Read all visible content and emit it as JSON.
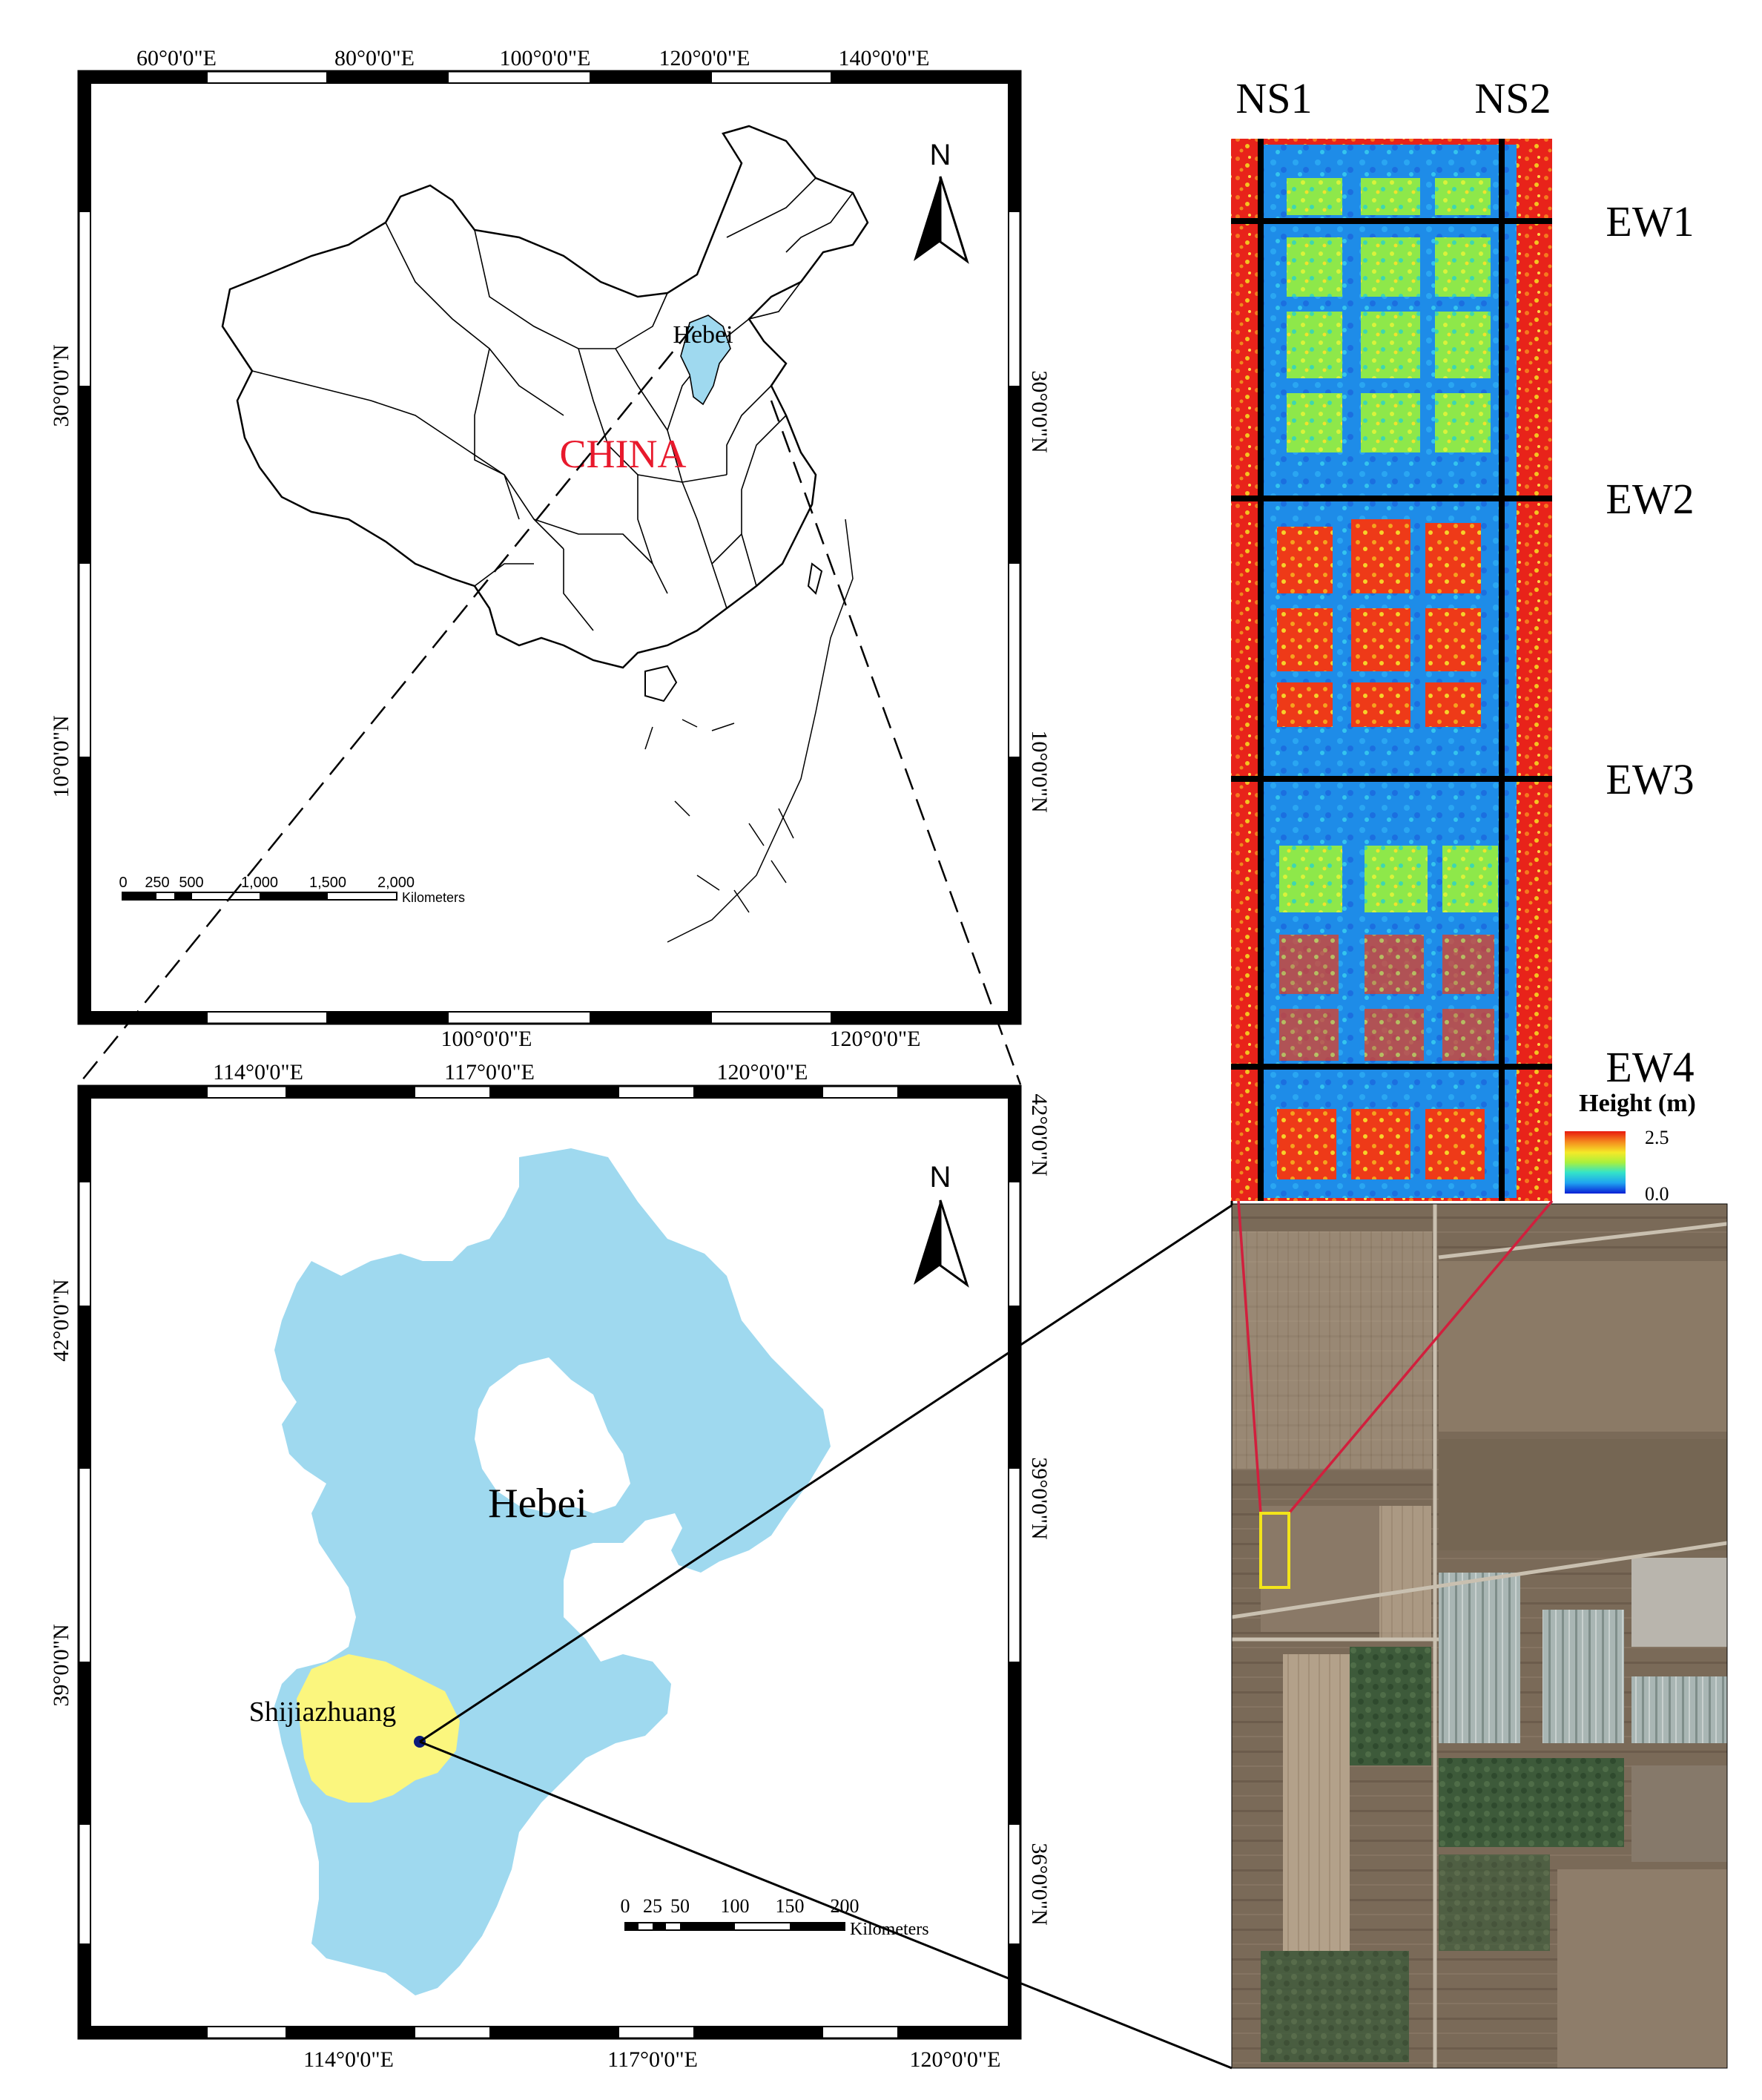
{
  "colors": {
    "hebei_fill": "#9fd9ef",
    "shijiazhuang_fill": "#fbf67e",
    "china_label": "#e8192c",
    "frame": "#000000",
    "leader_red": "#d11f3d",
    "site_box": "#f2e41a"
  },
  "china_map": {
    "top_ticks": [
      "60°0'0\"E",
      "80°0'0\"E",
      "100°0'0\"E",
      "120°0'0\"E",
      "140°0'0\"E"
    ],
    "bottom_ticks": [
      "100°0'0\"E",
      "120°0'0\"E"
    ],
    "left_ticks": [
      "30°0'0\"N",
      "10°0'0\"N"
    ],
    "right_ticks": [
      "30°0'0\"N",
      "10°0'0\"N"
    ],
    "country_label": "CHINA",
    "province_label": "Hebei",
    "north_letter": "N",
    "scale_numbers": [
      "0",
      "250",
      "500",
      "1,000",
      "1,500",
      "2,000"
    ],
    "scale_unit": "Kilometers"
  },
  "hebei_map": {
    "top_ticks": [
      "114°0'0\"E",
      "117°0'0\"E",
      "120°0'0\"E"
    ],
    "bottom_ticks": [
      "114°0'0\"E",
      "117°0'0\"E",
      "120°0'0\"E"
    ],
    "left_ticks": [
      "42°0'0\"N",
      "39°0'0\"N"
    ],
    "right_ticks": [
      "42°0'0\"N",
      "39°0'0\"N",
      "36°0'0\"N"
    ],
    "province_label": "Hebei",
    "city_label": "Shijiazhuang",
    "north_letter": "N",
    "scale_numbers": [
      "0",
      "25",
      "50",
      "100",
      "150",
      "200"
    ],
    "scale_unit": "Kilometers"
  },
  "height_map": {
    "ns_labels": [
      "NS1",
      "NS2"
    ],
    "ew_labels": [
      "EW1",
      "EW2",
      "EW3",
      "EW4"
    ],
    "legend_title": "Height (m)",
    "legend_max": "2.5",
    "legend_min": "0.0",
    "legend_stops": [
      "#0a1fd6",
      "#1fa4f0",
      "#34e4c8",
      "#aaf03c",
      "#f5e928",
      "#f58a1e",
      "#e8190e"
    ]
  }
}
